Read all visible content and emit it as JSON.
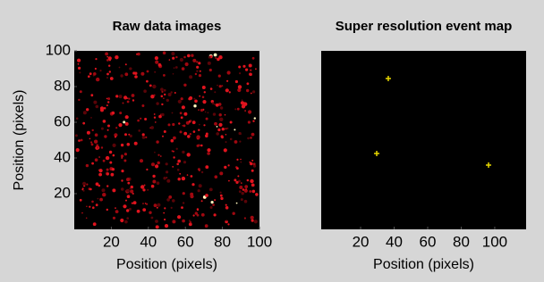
{
  "chart_data": [
    {
      "type": "image",
      "title": "Raw data images",
      "xlabel": "Position (pixels)",
      "ylabel": "Position (pixels)",
      "xlim": [
        0,
        100
      ],
      "ylim": [
        0,
        100
      ],
      "xticks": [
        20,
        40,
        60,
        80,
        100
      ],
      "yticks": [
        20,
        40,
        60,
        80,
        100
      ]
    },
    {
      "type": "scatter",
      "title": "Super resolution event map",
      "xlabel": "Position (pixels)",
      "x": [
        36.5,
        29.6,
        96.3
      ],
      "values": [
        84.5,
        42.5,
        36
      ],
      "color": "#e8d800",
      "xlim": [
        -3.5,
        118.7
      ],
      "ylim": [
        0,
        100
      ],
      "xticks": [
        20,
        40,
        60,
        80,
        100
      ]
    }
  ]
}
